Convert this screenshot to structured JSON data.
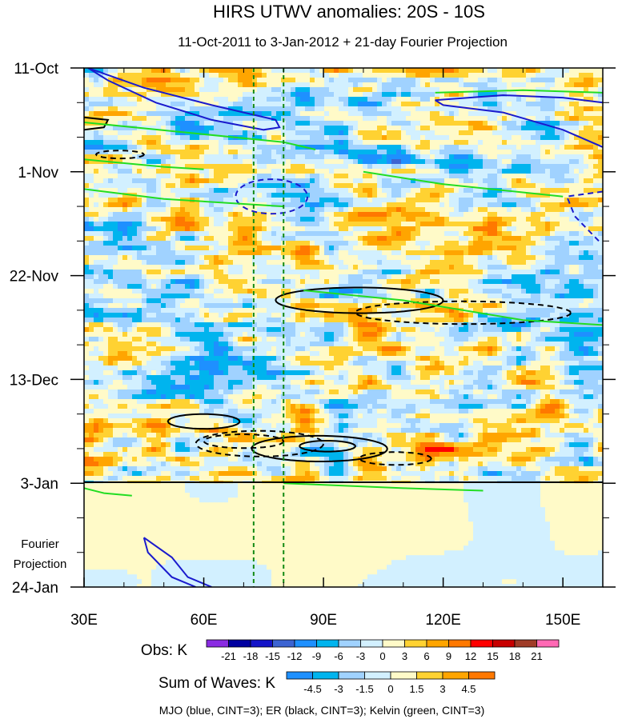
{
  "chart_data": {
    "type": "heatmap",
    "title": "HIRS UTWV anomalies: 20S - 10S",
    "subtitle": "11-Oct-2011 to 3-Jan-2012 + 21-day Fourier Projection",
    "x_ticks": [
      "30E",
      "60E",
      "90E",
      "120E",
      "150E"
    ],
    "x_tick_values": [
      30,
      60,
      90,
      120,
      150
    ],
    "xlim": [
      30,
      160
    ],
    "y_ticks": [
      "11-Oct",
      "1-Nov",
      "22-Nov",
      "13-Dec",
      "3-Jan",
      "24-Jan"
    ],
    "y_tick_days": [
      0,
      21,
      42,
      63,
      84,
      105
    ],
    "ylim_days": [
      0,
      105
    ],
    "y_axis_direction": "time increases downward",
    "projection_label": [
      "Fourier",
      "Projection"
    ],
    "observation_end": "3-Jan",
    "reference_longitudes": [
      72.5,
      80
    ],
    "obs_colorbar": {
      "label": "Obs: K",
      "levels": [
        "-21",
        "-18",
        "-15",
        "-12",
        "-9",
        "-6",
        "-3",
        "0",
        "3",
        "6",
        "9",
        "12",
        "15",
        "18",
        "21"
      ],
      "colors": [
        "#8a2be2",
        "#0000a0",
        "#1414c8",
        "#3c64d2",
        "#1e90ff",
        "#00b4ee",
        "#a0d2ff",
        "#d2f0ff",
        "#fffac8",
        "#ffd232",
        "#ffa500",
        "#ff7800",
        "#ff0000",
        "#c80000",
        "#a03c28",
        "#ff69b4"
      ]
    },
    "waves_colorbar": {
      "label": "Sum of Waves: K",
      "levels": [
        "-4.5",
        "-3",
        "-1.5",
        "0",
        "1.5",
        "3",
        "4.5"
      ],
      "colors": [
        "#1e90ff",
        "#00b4ee",
        "#a0d2ff",
        "#d2f0ff",
        "#fffac8",
        "#ffd232",
        "#ffa500",
        "#ff7800"
      ]
    },
    "contours_note": "MJO (blue, CINT=3); ER (black, CINT=3); Kelvin (green, CINT=3)",
    "contour_colors": {
      "MJO": "#1a1acd",
      "ER": "#000000",
      "Kelvin": "#22dd22"
    }
  }
}
